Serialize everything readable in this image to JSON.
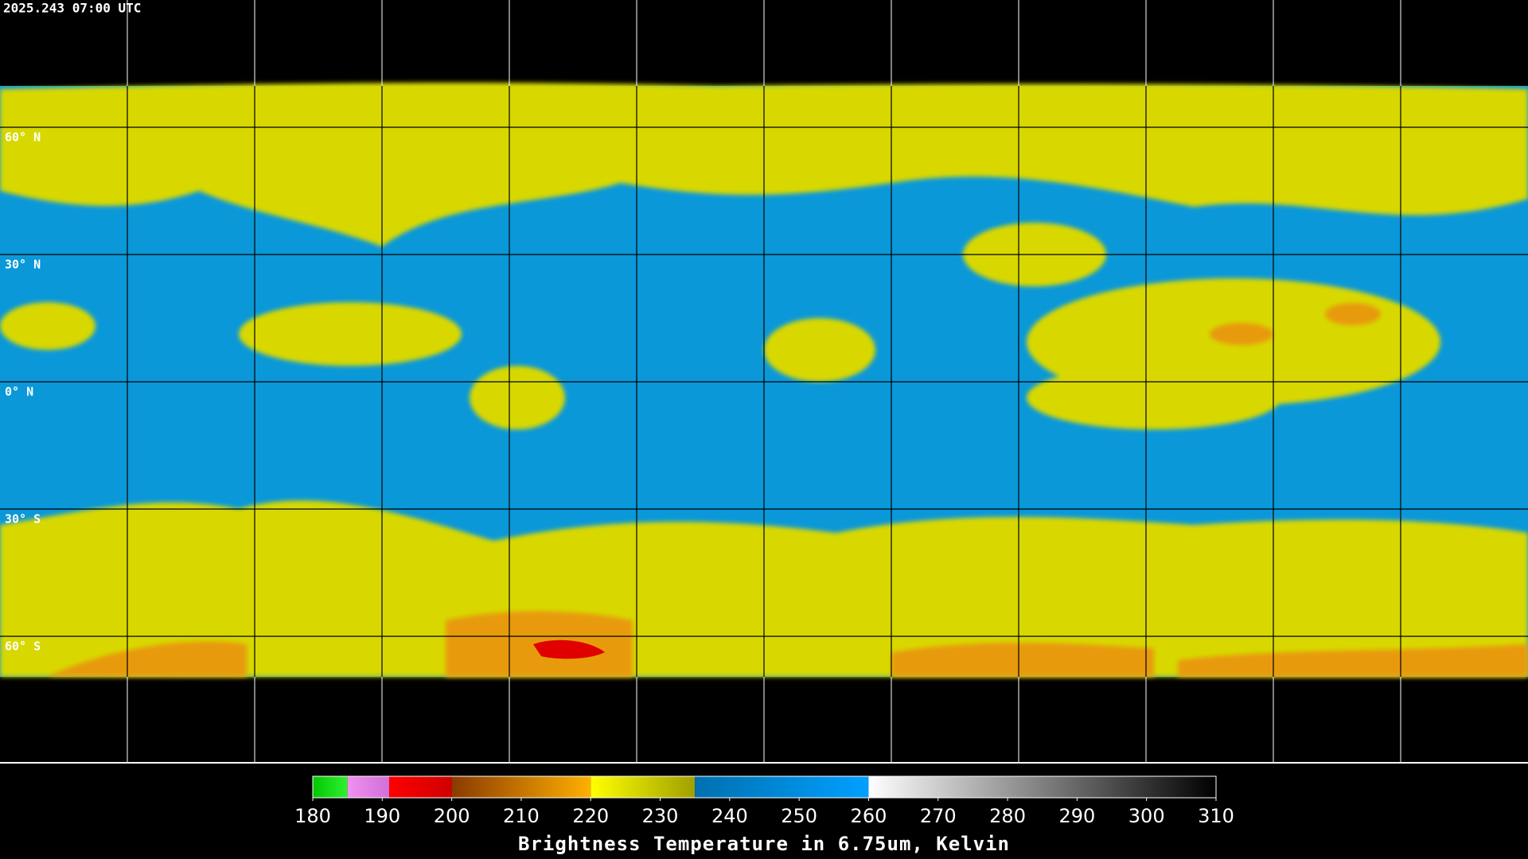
{
  "header": {
    "timestamp": "2025.243 07:00 UTC"
  },
  "map": {
    "lat_labels": [
      {
        "value": 60,
        "label": "60° N"
      },
      {
        "value": 30,
        "label": "30° N"
      },
      {
        "value": 0,
        "label": "0° N"
      },
      {
        "value": -30,
        "label": "30° S"
      },
      {
        "value": -60,
        "label": "60° S"
      }
    ]
  },
  "colorbar": {
    "range": [
      180,
      310
    ],
    "ticks": [
      180,
      190,
      200,
      210,
      220,
      230,
      240,
      250,
      260,
      270,
      280,
      290,
      300,
      310
    ],
    "segments": [
      {
        "from": 180,
        "to": 185,
        "colors": [
          "#00c800",
          "#30f030"
        ]
      },
      {
        "from": 185,
        "to": 191,
        "colors": [
          "#f090f0",
          "#d070d8"
        ]
      },
      {
        "from": 191,
        "to": 200,
        "colors": [
          "#ff0000",
          "#d00000"
        ]
      },
      {
        "from": 200,
        "to": 220,
        "colors": [
          "#8a3a00",
          "#ffb000"
        ]
      },
      {
        "from": 220,
        "to": 235,
        "colors": [
          "#ffff00",
          "#a0a000"
        ]
      },
      {
        "from": 235,
        "to": 260,
        "colors": [
          "#0070b0",
          "#00a0ff"
        ]
      },
      {
        "from": 260,
        "to": 310,
        "colors": [
          "#ffffff",
          "#000000"
        ]
      }
    ],
    "label": "Brightness Temperature in 6.75um, Kelvin"
  }
}
